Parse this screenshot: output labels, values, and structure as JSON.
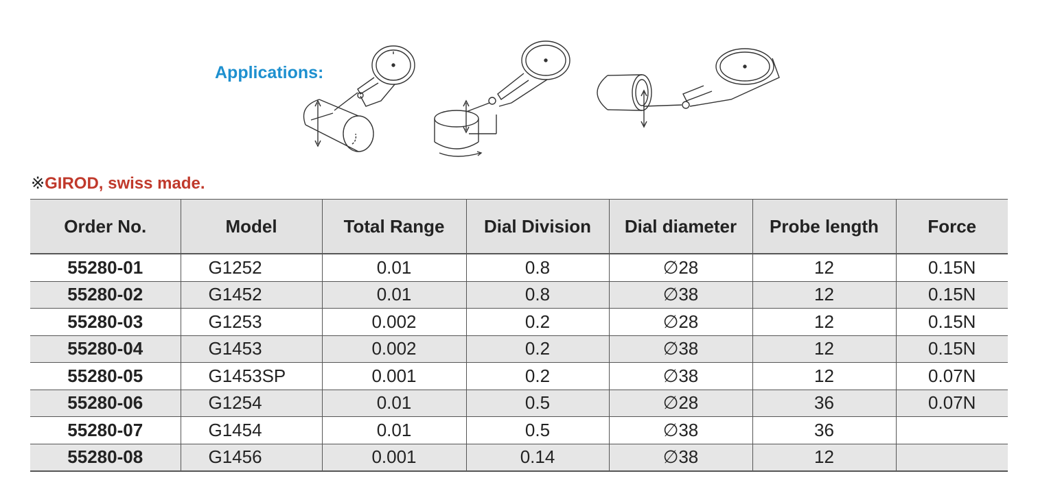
{
  "applications_label": "Applications:",
  "note": {
    "mark": "※",
    "text": "GIROD, swiss made."
  },
  "illustrations": [
    {
      "icon": "dial-indicator-on-cylinder-icon"
    },
    {
      "icon": "dial-indicator-on-disc-icon"
    },
    {
      "icon": "dial-indicator-in-bore-icon"
    }
  ],
  "table": {
    "headers": [
      "Order No.",
      "Model",
      "Total Range",
      "Dial Division",
      "Dial diameter",
      "Probe length",
      "Force"
    ],
    "rows": [
      [
        "55280-01",
        "G1252",
        "0.01",
        "0.8",
        "∅28",
        "12",
        "0.15N"
      ],
      [
        "55280-02",
        "G1452",
        "0.01",
        "0.8",
        "∅38",
        "12",
        "0.15N"
      ],
      [
        "55280-03",
        "G1253",
        "0.002",
        "0.2",
        "∅28",
        "12",
        "0.15N"
      ],
      [
        "55280-04",
        "G1453",
        "0.002",
        "0.2",
        "∅38",
        "12",
        "0.15N"
      ],
      [
        "55280-05",
        "G1453SP",
        "0.001",
        "0.2",
        "∅38",
        "12",
        "0.07N"
      ],
      [
        "55280-06",
        "G1254",
        "0.01",
        "0.5",
        "∅28",
        "36",
        "0.07N"
      ],
      [
        "55280-07",
        "G1454",
        "0.01",
        "0.5",
        "∅38",
        "36",
        ""
      ],
      [
        "55280-08",
        "G1456",
        "0.001",
        "0.14",
        "∅38",
        "12",
        ""
      ]
    ]
  }
}
